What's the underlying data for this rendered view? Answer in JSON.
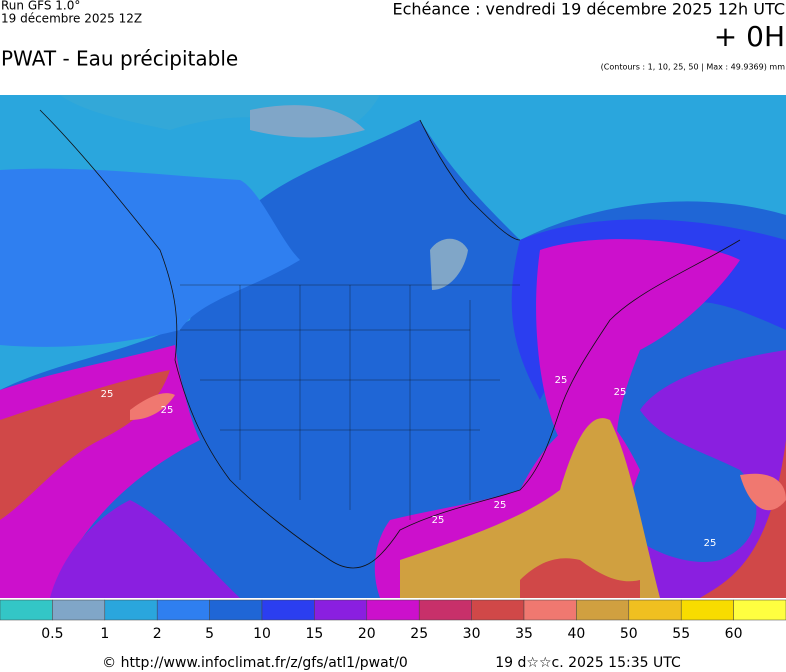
{
  "header": {
    "run": "Run GFS 1.0°",
    "run_date": "19 décembre 2025 12Z",
    "title": "PWAT - Eau précipitable",
    "valid": "Echéance : vendredi 19 décembre 2025 12h UTC",
    "offset": "+ 0H",
    "contours": "(Contours : 1, 10, 25, 50 | Max : 49.9369) mm"
  },
  "map": {
    "contour_labels": [
      "25",
      "25",
      "25",
      "25",
      "25",
      "25",
      "25"
    ]
  },
  "legend": {
    "colors": [
      "#33c6c6",
      "#80a6c8",
      "#2aa6dd",
      "#2f7ff0",
      "#1f66d6",
      "#2b3ef0",
      "#8a1fe0",
      "#cc10cc",
      "#c8306a",
      "#d04848",
      "#f07870",
      "#d0a040",
      "#f0c020",
      "#f8dc00",
      "#ffff40"
    ],
    "labels": [
      "0.5",
      "1",
      "2",
      "5",
      "10",
      "15",
      "20",
      "25",
      "30",
      "35",
      "40",
      "50",
      "55",
      "60"
    ]
  },
  "footer": {
    "source": "© http://www.infoclimat.fr/z/gfs/atl1/pwat/0",
    "generated": "19 d☆☆c. 2025 15:35 UTC"
  }
}
